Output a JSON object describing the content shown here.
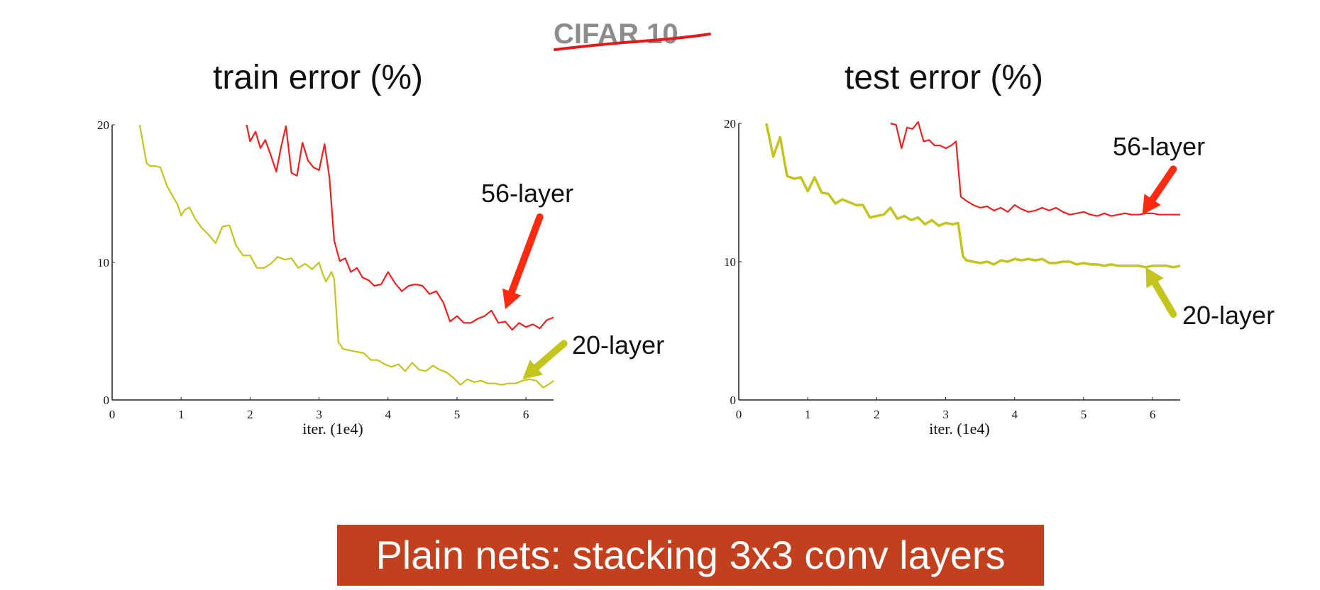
{
  "header": {
    "text": "CIFAR 10",
    "strike_color": "#e01b1b"
  },
  "caption": {
    "text": "Plain nets: stacking 3x3 conv layers",
    "bg_color": "#c2401e"
  },
  "colors": {
    "layer56": "#f02020",
    "layer20": "#c3c41d",
    "arrow56": "#ff2a10",
    "arrow20": "#c3c41d"
  },
  "annotations": {
    "left": {
      "layer56": "56-layer",
      "layer20": "20-layer"
    },
    "right": {
      "layer56": "56-layer",
      "layer20": "20-layer"
    }
  },
  "chart_data": [
    {
      "type": "line",
      "title": "train error (%)",
      "xlabel": "iter. (1e4)",
      "ylabel": "",
      "xlim": [
        0,
        6.4
      ],
      "ylim": [
        0,
        20
      ],
      "xticks": [
        "0",
        "1",
        "2",
        "3",
        "4",
        "5",
        "6"
      ],
      "yticks": [
        "0",
        "10",
        "20"
      ],
      "series": [
        {
          "name": "56-layer",
          "x": [
            1.95,
            2.0,
            2.08,
            2.15,
            2.22,
            2.3,
            2.38,
            2.45,
            2.52,
            2.6,
            2.68,
            2.76,
            2.84,
            2.92,
            3.0,
            3.08,
            3.15,
            3.22,
            3.3,
            3.38,
            3.46,
            3.55,
            3.63,
            3.72,
            3.8,
            3.9,
            4.0,
            4.1,
            4.2,
            4.3,
            4.4,
            4.5,
            4.6,
            4.7,
            4.8,
            4.9,
            5.0,
            5.1,
            5.2,
            5.3,
            5.4,
            5.5,
            5.6,
            5.7,
            5.8,
            5.9,
            6.0,
            6.1,
            6.2,
            6.3,
            6.4
          ],
          "y": [
            20.0,
            18.8,
            19.5,
            18.3,
            18.9,
            17.8,
            16.6,
            18.4,
            19.9,
            16.5,
            16.3,
            18.7,
            17.4,
            16.9,
            16.7,
            18.6,
            16.2,
            11.6,
            10.1,
            10.3,
            9.3,
            9.6,
            8.9,
            8.7,
            8.3,
            8.4,
            9.3,
            8.5,
            7.9,
            8.3,
            8.4,
            8.3,
            7.7,
            7.9,
            7.1,
            5.7,
            6.1,
            5.6,
            5.6,
            5.9,
            6.1,
            6.5,
            5.6,
            5.7,
            5.1,
            5.6,
            5.3,
            5.5,
            5.2,
            5.8,
            6.0
          ]
        },
        {
          "name": "20-layer",
          "x": [
            0.4,
            0.5,
            0.55,
            0.63,
            0.7,
            0.8,
            0.88,
            0.95,
            1.0,
            1.05,
            1.12,
            1.2,
            1.3,
            1.4,
            1.5,
            1.6,
            1.7,
            1.8,
            1.9,
            2.0,
            2.1,
            2.2,
            2.3,
            2.4,
            2.5,
            2.6,
            2.7,
            2.8,
            2.9,
            3.0,
            3.05,
            3.1,
            3.18,
            3.22,
            3.28,
            3.35,
            3.45,
            3.55,
            3.65,
            3.75,
            3.85,
            3.95,
            4.05,
            4.15,
            4.25,
            4.35,
            4.45,
            4.55,
            4.65,
            4.75,
            4.85,
            4.95,
            5.05,
            5.15,
            5.25,
            5.35,
            5.45,
            5.55,
            5.65,
            5.75,
            5.85,
            5.95,
            6.05,
            6.15,
            6.25,
            6.35,
            6.4
          ],
          "y": [
            20.0,
            17.2,
            17.0,
            17.0,
            16.9,
            15.5,
            14.8,
            14.2,
            13.4,
            13.8,
            14.0,
            13.2,
            12.5,
            12.0,
            11.4,
            12.6,
            12.7,
            11.2,
            10.5,
            10.5,
            9.6,
            9.6,
            9.9,
            10.4,
            10.2,
            10.3,
            9.6,
            9.9,
            9.5,
            10.0,
            9.2,
            8.6,
            9.3,
            8.8,
            4.2,
            3.7,
            3.6,
            3.5,
            3.4,
            2.9,
            2.9,
            2.6,
            2.4,
            2.6,
            2.1,
            2.7,
            2.2,
            2.1,
            2.5,
            2.2,
            2.0,
            1.6,
            1.1,
            1.5,
            1.3,
            1.4,
            1.2,
            1.2,
            1.1,
            1.2,
            1.2,
            1.4,
            1.5,
            1.4,
            0.9,
            1.2,
            1.4
          ]
        }
      ],
      "arrows": [
        {
          "series": "56-layer",
          "from": [
            6.2,
            13.3
          ],
          "to": [
            5.7,
            6.6
          ]
        },
        {
          "series": "20-layer",
          "from": [
            6.55,
            4.1
          ],
          "to": [
            5.95,
            1.5
          ]
        }
      ]
    },
    {
      "type": "line",
      "title": "test error (%)",
      "xlabel": "iter. (1e4)",
      "ylabel": "",
      "xlim": [
        0,
        6.4
      ],
      "ylim": [
        0,
        20
      ],
      "xticks": [
        "0",
        "1",
        "2",
        "3",
        "4",
        "5",
        "6"
      ],
      "yticks": [
        "0",
        "10",
        "20"
      ],
      "series": [
        {
          "name": "56-layer",
          "x": [
            2.2,
            2.28,
            2.36,
            2.44,
            2.52,
            2.6,
            2.68,
            2.76,
            2.84,
            2.92,
            3.0,
            3.08,
            3.15,
            3.22,
            3.3,
            3.4,
            3.5,
            3.6,
            3.7,
            3.8,
            3.9,
            4.0,
            4.1,
            4.2,
            4.3,
            4.4,
            4.5,
            4.6,
            4.7,
            4.8,
            4.9,
            5.0,
            5.1,
            5.2,
            5.3,
            5.4,
            5.5,
            5.6,
            5.7,
            5.8,
            5.9,
            6.0,
            6.1,
            6.2,
            6.3,
            6.4
          ],
          "y": [
            20.0,
            19.9,
            18.2,
            19.7,
            19.6,
            20.1,
            18.7,
            18.8,
            18.4,
            18.4,
            18.2,
            18.4,
            18.7,
            14.7,
            14.4,
            14.1,
            13.9,
            14.0,
            13.7,
            13.9,
            13.6,
            14.1,
            13.8,
            13.6,
            13.7,
            13.9,
            13.7,
            13.9,
            13.6,
            13.4,
            13.5,
            13.6,
            13.4,
            13.3,
            13.5,
            13.3,
            13.4,
            13.5,
            13.4,
            13.4,
            13.5,
            13.5,
            13.4,
            13.4,
            13.4,
            13.4
          ]
        },
        {
          "name": "20-layer",
          "x": [
            0.4,
            0.5,
            0.6,
            0.7,
            0.8,
            0.9,
            1.0,
            1.1,
            1.2,
            1.3,
            1.4,
            1.5,
            1.6,
            1.7,
            1.8,
            1.9,
            2.0,
            2.1,
            2.2,
            2.3,
            2.4,
            2.5,
            2.6,
            2.7,
            2.8,
            2.9,
            3.0,
            3.1,
            3.18,
            3.25,
            3.3,
            3.4,
            3.5,
            3.6,
            3.7,
            3.8,
            3.9,
            4.0,
            4.1,
            4.2,
            4.3,
            4.4,
            4.5,
            4.6,
            4.7,
            4.8,
            4.9,
            5.0,
            5.1,
            5.2,
            5.3,
            5.4,
            5.5,
            5.6,
            5.7,
            5.8,
            5.9,
            6.0,
            6.1,
            6.2,
            6.3,
            6.4
          ],
          "y": [
            20.0,
            17.6,
            19.0,
            16.2,
            16.0,
            16.1,
            15.1,
            16.1,
            15.0,
            14.9,
            14.2,
            14.5,
            14.3,
            14.1,
            14.1,
            13.2,
            13.3,
            13.4,
            13.9,
            13.1,
            13.3,
            13.0,
            13.2,
            12.7,
            13.0,
            12.6,
            12.8,
            12.7,
            12.8,
            10.4,
            10.1,
            10.0,
            9.9,
            10.0,
            9.8,
            10.1,
            10.0,
            10.2,
            10.1,
            10.2,
            10.1,
            10.2,
            9.9,
            9.9,
            10.0,
            10.0,
            9.8,
            9.9,
            9.8,
            9.8,
            9.7,
            9.8,
            9.7,
            9.7,
            9.7,
            9.7,
            9.6,
            9.7,
            9.7,
            9.7,
            9.6,
            9.7
          ]
        }
      ],
      "arrows": [
        {
          "series": "56-layer",
          "from": [
            6.3,
            16.7
          ],
          "to": [
            5.85,
            13.4
          ]
        },
        {
          "series": "20-layer",
          "from": [
            6.3,
            6.2
          ],
          "to": [
            5.9,
            9.6
          ]
        }
      ]
    }
  ]
}
